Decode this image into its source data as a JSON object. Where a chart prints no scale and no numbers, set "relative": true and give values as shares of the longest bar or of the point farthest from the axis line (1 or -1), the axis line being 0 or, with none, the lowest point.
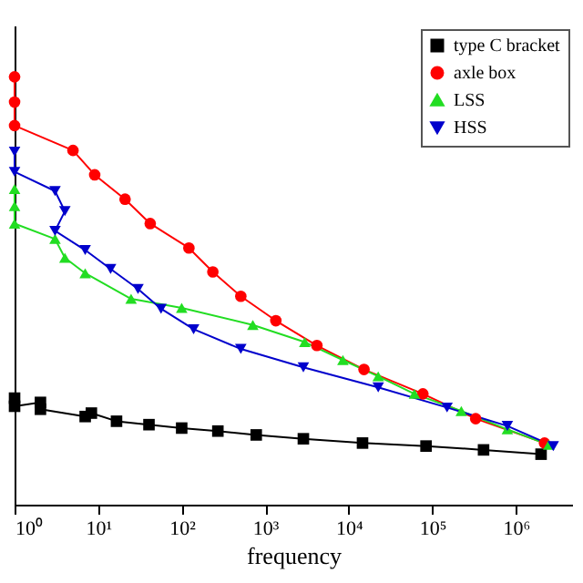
{
  "chart_data": {
    "type": "line",
    "xlabel": "frequency",
    "log": "x",
    "relative": true,
    "grid": false,
    "legend": "top right",
    "xlim": [
      1,
      4700000
    ],
    "xticks": [
      {
        "value": 1,
        "label": "10⁰"
      },
      {
        "value": 10,
        "label": "10¹"
      },
      {
        "value": 100,
        "label": "10²"
      },
      {
        "value": 1000,
        "label": "10³"
      },
      {
        "value": 10000,
        "label": "10⁴"
      },
      {
        "value": 100000,
        "label": "10⁵"
      },
      {
        "value": 1000000,
        "label": "10⁶"
      }
    ],
    "series": [
      {
        "name": "type C bracket",
        "color": "#000000",
        "marker": "square",
        "x": [
          1,
          1,
          2.04,
          2.04,
          7.0,
          8.3,
          16.6,
          40.6,
          100,
          271,
          780,
          2860,
          14600,
          84000,
          410000,
          2000000
        ],
        "values": [
          0.249,
          0.23,
          0.239,
          0.223,
          0.206,
          0.214,
          0.195,
          0.187,
          0.179,
          0.172,
          0.163,
          0.154,
          0.144,
          0.137,
          0.128,
          0.118
        ]
      },
      {
        "name": "axle box",
        "color": "#ff0000",
        "marker": "circle",
        "x": [
          1,
          1,
          1,
          5.0,
          9.1,
          21,
          42,
          122,
          236,
          510,
          1340,
          4150,
          15200,
          77000,
          330000,
          2200000
        ],
        "values": [
          1.0,
          0.941,
          0.886,
          0.828,
          0.771,
          0.714,
          0.657,
          0.6,
          0.544,
          0.487,
          0.43,
          0.372,
          0.316,
          0.259,
          0.201,
          0.144
        ]
      },
      {
        "name": "LSS",
        "color": "#22dd22",
        "marker": "triangle",
        "x": [
          1,
          1,
          1,
          3.05,
          4.0,
          7.0,
          24.8,
          100,
          710,
          2970,
          8500,
          22500,
          61000,
          222000,
          790000,
          2470000
        ],
        "values": [
          0.738,
          0.698,
          0.657,
          0.621,
          0.577,
          0.541,
          0.481,
          0.46,
          0.42,
          0.38,
          0.338,
          0.3,
          0.259,
          0.219,
          0.176,
          0.14
        ]
      },
      {
        "name": "HSS",
        "color": "#0000cc",
        "marker": "triangle-down",
        "x": [
          1,
          1,
          3.05,
          4.0,
          3.05,
          7.0,
          14.1,
          30,
          56.6,
          139,
          510,
          2860,
          22500,
          150000,
          790000,
          2800000
        ],
        "values": [
          0.825,
          0.778,
          0.733,
          0.686,
          0.64,
          0.595,
          0.551,
          0.504,
          0.458,
          0.41,
          0.364,
          0.321,
          0.274,
          0.227,
          0.184,
          0.137
        ]
      }
    ]
  }
}
